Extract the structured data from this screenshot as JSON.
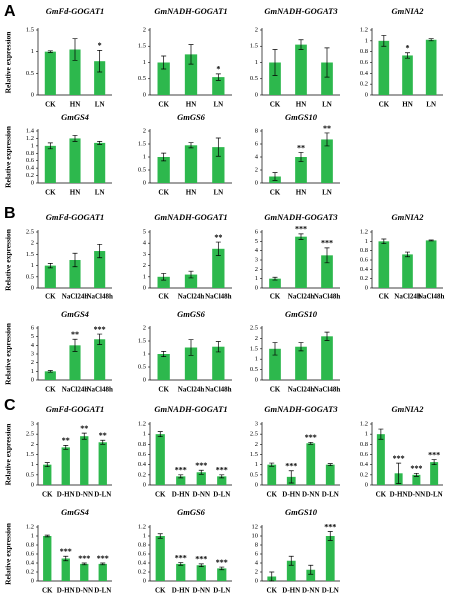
{
  "panel_labels": [
    "A",
    "B",
    "C"
  ],
  "chart_data": [
    {
      "type": "bar",
      "title": "GmFd-GOGAT1",
      "y_label": "Relative expression",
      "categories": [
        "CK",
        "HN",
        "LN"
      ],
      "values": [
        1,
        1.05,
        0.78
      ],
      "errors": [
        0.02,
        0.25,
        0.25
      ],
      "annotations": [
        null,
        null,
        "*"
      ],
      "ylim": [
        0,
        1.5
      ],
      "yticks": [
        0,
        0.5,
        1,
        1.5
      ],
      "color": "#2db84d"
    },
    {
      "type": "bar",
      "title": "GmNADH-GOGAT1",
      "categories": [
        "CK",
        "HN",
        "LN"
      ],
      "values": [
        1,
        1.25,
        0.55
      ],
      "errors": [
        0.2,
        0.3,
        0.1
      ],
      "annotations": [
        null,
        null,
        "*"
      ],
      "ylim": [
        0,
        2
      ],
      "yticks": [
        0,
        0.5,
        1,
        1.5,
        2
      ],
      "color": "#2db84d"
    },
    {
      "type": "bar",
      "title": "GmNADH-GOGAT3",
      "categories": [
        "CK",
        "HN",
        "LN"
      ],
      "values": [
        1,
        1.55,
        1
      ],
      "errors": [
        0.4,
        0.15,
        0.45
      ],
      "annotations": [
        null,
        null,
        null
      ],
      "ylim": [
        0,
        2
      ],
      "yticks": [
        0,
        0.5,
        1,
        1.5,
        2
      ],
      "color": "#2db84d"
    },
    {
      "type": "bar",
      "title": "GmNIA2",
      "categories": [
        "CK",
        "HN",
        "LN"
      ],
      "values": [
        1,
        0.73,
        1.02
      ],
      "errors": [
        0.1,
        0.05,
        0.02
      ],
      "annotations": [
        null,
        "*",
        null
      ],
      "ylim": [
        0,
        1.2
      ],
      "yticks": [
        0,
        0.2,
        0.4,
        0.6,
        0.8,
        1,
        1.2
      ],
      "color": "#2db84d"
    },
    {
      "type": "bar",
      "title": "GmGS4",
      "y_label": "Relative expression",
      "categories": [
        "CK",
        "HN",
        "LN"
      ],
      "values": [
        1,
        1.2,
        1.08
      ],
      "errors": [
        0.08,
        0.08,
        0.04
      ],
      "annotations": [
        null,
        null,
        null
      ],
      "ylim": [
        0,
        1.4
      ],
      "yticks": [
        0,
        0.2,
        0.4,
        0.6,
        0.8,
        1,
        1.2,
        1.4
      ],
      "color": "#2db84d"
    },
    {
      "type": "bar",
      "title": "GmGS6",
      "categories": [
        "CK",
        "HN",
        "LN"
      ],
      "values": [
        1,
        1.45,
        1.38
      ],
      "errors": [
        0.15,
        0.1,
        0.35
      ],
      "annotations": [
        null,
        null,
        null
      ],
      "ylim": [
        0,
        2
      ],
      "yticks": [
        0,
        0.5,
        1,
        1.5,
        2
      ],
      "color": "#2db84d"
    },
    {
      "type": "bar",
      "title": "GmGS10",
      "categories": [
        "CK",
        "HN",
        "LN"
      ],
      "values": [
        1,
        4,
        6.7
      ],
      "errors": [
        0.6,
        0.7,
        1
      ],
      "annotations": [
        null,
        "**",
        "**"
      ],
      "ylim": [
        0,
        8
      ],
      "yticks": [
        0,
        2,
        4,
        6,
        8
      ],
      "color": "#2db84d"
    },
    {
      "type": "bar",
      "title": "GmFd-GOGAT1",
      "y_label": "Relative expression",
      "categories": [
        "CK",
        "NaCl24h",
        "NaCl48h"
      ],
      "values": [
        1,
        1.25,
        1.65
      ],
      "errors": [
        0.1,
        0.3,
        0.3
      ],
      "annotations": [
        null,
        null,
        null
      ],
      "ylim": [
        0,
        2.5
      ],
      "yticks": [
        0,
        0.5,
        1,
        1.5,
        2,
        2.5
      ],
      "color": "#2db84d"
    },
    {
      "type": "bar",
      "title": "GmNADH-GOGAT1",
      "categories": [
        "CK",
        "NaCl24h",
        "NaCl48h"
      ],
      "values": [
        1,
        1.2,
        3.5
      ],
      "errors": [
        0.3,
        0.3,
        0.6
      ],
      "annotations": [
        null,
        null,
        "**"
      ],
      "ylim": [
        0,
        5
      ],
      "yticks": [
        0,
        1,
        2,
        3,
        4,
        5
      ],
      "color": "#2db84d"
    },
    {
      "type": "bar",
      "title": "GmNADH-GOGAT3",
      "categories": [
        "CK",
        "NaCl24h",
        "NaCl48h"
      ],
      "values": [
        1,
        5.5,
        3.5
      ],
      "errors": [
        0.15,
        0.3,
        0.8
      ],
      "annotations": [
        null,
        "***",
        "***"
      ],
      "ylim": [
        0,
        6
      ],
      "yticks": [
        0,
        1,
        2,
        3,
        4,
        5,
        6
      ],
      "color": "#2db84d"
    },
    {
      "type": "bar",
      "title": "GmNIA2",
      "categories": [
        "CK",
        "NaCl24h",
        "NaCl48h"
      ],
      "values": [
        1,
        0.72,
        1.02
      ],
      "errors": [
        0.05,
        0.05,
        0.01
      ],
      "annotations": [
        null,
        null,
        null
      ],
      "ylim": [
        0,
        1.2
      ],
      "yticks": [
        0,
        0.2,
        0.4,
        0.6,
        0.8,
        1,
        1.2
      ],
      "color": "#2db84d"
    },
    {
      "type": "bar",
      "title": "GmGS4",
      "y_label": "Relative expression",
      "categories": [
        "CK",
        "NaCl24h",
        "NaCl48h"
      ],
      "values": [
        1,
        4,
        4.7
      ],
      "errors": [
        0.1,
        0.7,
        0.6
      ],
      "annotations": [
        null,
        "**",
        "***"
      ],
      "ylim": [
        0,
        6
      ],
      "yticks": [
        0,
        1,
        2,
        3,
        4,
        5,
        6
      ],
      "color": "#2db84d"
    },
    {
      "type": "bar",
      "title": "GmGS6",
      "categories": [
        "CK",
        "NaCl24h",
        "NaCl48h"
      ],
      "values": [
        1,
        1.25,
        1.28
      ],
      "errors": [
        0.1,
        0.3,
        0.2
      ],
      "annotations": [
        null,
        null,
        null
      ],
      "ylim": [
        0,
        2
      ],
      "yticks": [
        0,
        0.5,
        1,
        1.5,
        2
      ],
      "color": "#2db84d"
    },
    {
      "type": "bar",
      "title": "GmGS10",
      "categories": [
        "CK",
        "NaCl24h",
        "NaCl48h"
      ],
      "values": [
        1.5,
        1.6,
        2.1
      ],
      "errors": [
        0.3,
        0.2,
        0.2
      ],
      "annotations": [
        null,
        null,
        null
      ],
      "ylim": [
        0,
        2.5
      ],
      "yticks": [
        0,
        0.5,
        1,
        1.5,
        2,
        2.5
      ],
      "color": "#2db84d"
    },
    {
      "type": "bar",
      "title": "GmFd-GOGAT1",
      "y_label": "Relative expression",
      "categories": [
        "CK",
        "D-HN",
        "D-NN",
        "D-LN"
      ],
      "values": [
        1,
        1.85,
        2.4,
        2.1
      ],
      "errors": [
        0.1,
        0.1,
        0.15,
        0.1
      ],
      "annotations": [
        null,
        "**",
        "**",
        "**"
      ],
      "ylim": [
        0,
        3
      ],
      "yticks": [
        0,
        0.5,
        1,
        1.5,
        2,
        2.5,
        3
      ],
      "color": "#2db84d"
    },
    {
      "type": "bar",
      "title": "GmNADH-GOGAT1",
      "categories": [
        "CK",
        "D-HN",
        "D-NN",
        "D-LN"
      ],
      "values": [
        1,
        0.17,
        0.25,
        0.17
      ],
      "errors": [
        0.05,
        0.03,
        0.04,
        0.03
      ],
      "annotations": [
        null,
        "***",
        "***",
        "***"
      ],
      "ylim": [
        0,
        1.2
      ],
      "yticks": [
        0,
        0.2,
        0.4,
        0.6,
        0.8,
        1,
        1.2
      ],
      "color": "#2db84d"
    },
    {
      "type": "bar",
      "title": "GmNADH-GOGAT3",
      "categories": [
        "CK",
        "D-HN",
        "D-NN",
        "D-LN"
      ],
      "values": [
        1,
        0.4,
        2.05,
        1
      ],
      "errors": [
        0.08,
        0.3,
        0.05,
        0.05
      ],
      "annotations": [
        null,
        "***",
        "***",
        null
      ],
      "ylim": [
        0,
        3
      ],
      "yticks": [
        0,
        0.5,
        1,
        1.5,
        2,
        2.5,
        3
      ],
      "color": "#2db84d"
    },
    {
      "type": "bar",
      "title": "GmNIA2",
      "categories": [
        "CK",
        "D-HN",
        "D-NN",
        "D-LN"
      ],
      "values": [
        1,
        0.23,
        0.2,
        0.45
      ],
      "errors": [
        0.1,
        0.2,
        0.03,
        0.05
      ],
      "annotations": [
        null,
        "***",
        "***",
        "***"
      ],
      "ylim": [
        0,
        1.2
      ],
      "yticks": [
        0,
        0.2,
        0.4,
        0.6,
        0.8,
        1,
        1.2
      ],
      "color": "#2db84d"
    },
    {
      "type": "bar",
      "title": "GmGS4",
      "y_label": "Relative expression",
      "categories": [
        "CK",
        "D-HN",
        "D-NN",
        "D-LN"
      ],
      "values": [
        1,
        0.5,
        0.38,
        0.38
      ],
      "errors": [
        0.02,
        0.05,
        0.02,
        0.02
      ],
      "annotations": [
        null,
        "***",
        "***",
        "***"
      ],
      "ylim": [
        0,
        1.2
      ],
      "yticks": [
        0,
        0.2,
        0.4,
        0.6,
        0.8,
        1,
        1.2
      ],
      "color": "#2db84d"
    },
    {
      "type": "bar",
      "title": "GmGS6",
      "categories": [
        "CK",
        "D-HN",
        "D-NN",
        "D-LN"
      ],
      "values": [
        1,
        0.38,
        0.35,
        0.28
      ],
      "errors": [
        0.05,
        0.03,
        0.03,
        0.03
      ],
      "annotations": [
        null,
        "***",
        "***",
        "***"
      ],
      "ylim": [
        0,
        1.2
      ],
      "yticks": [
        0,
        0.2,
        0.4,
        0.6,
        0.8,
        1,
        1.2
      ],
      "color": "#2db84d"
    },
    {
      "type": "bar",
      "title": "GmGS10",
      "categories": [
        "CK",
        "D-HN",
        "D-NN",
        "D-LN"
      ],
      "values": [
        1,
        4.5,
        2.5,
        10
      ],
      "errors": [
        1,
        1,
        1,
        1
      ],
      "annotations": [
        null,
        null,
        null,
        "***"
      ],
      "ylim": [
        0,
        12
      ],
      "yticks": [
        0,
        2,
        4,
        6,
        8,
        10,
        12
      ],
      "color": "#2db84d"
    }
  ]
}
